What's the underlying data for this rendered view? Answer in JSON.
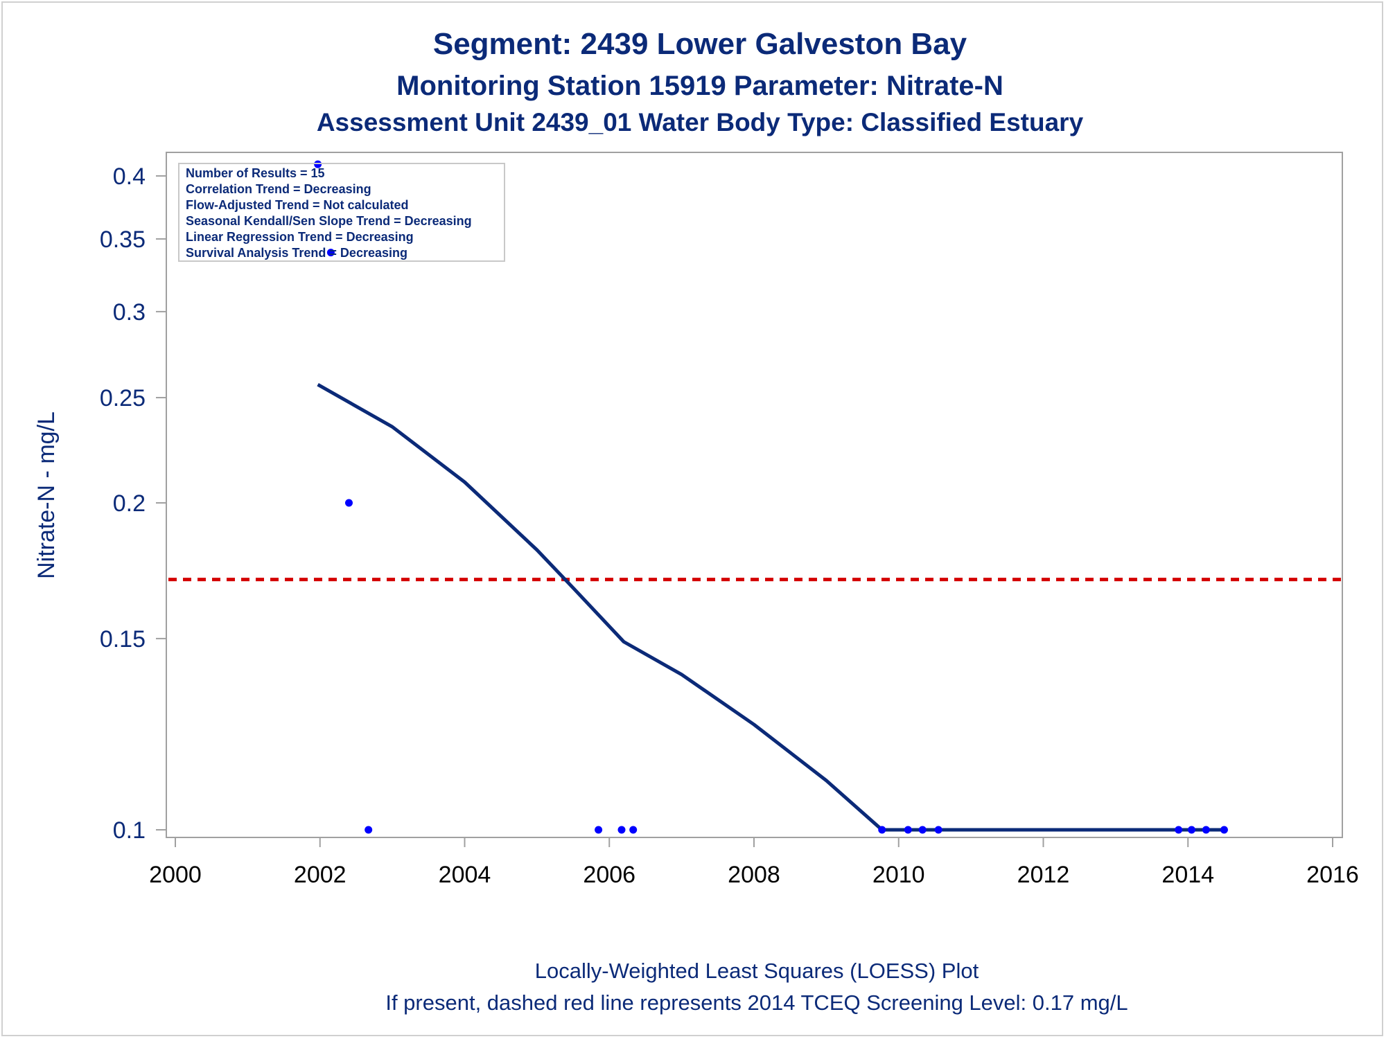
{
  "titles": {
    "line1": "Segment: 2439  Lower Galveston Bay",
    "line2": "Monitoring Station 15919 Parameter: Nitrate-N",
    "line3": "Assessment Unit 2439_01   Water Body Type: Classified Estuary"
  },
  "stats_box": [
    "Number of Results = 15",
    "Correlation Trend = Decreasing",
    "Flow-Adjusted Trend = Not calculated",
    "Seasonal Kendall/Sen Slope Trend = Decreasing",
    "Linear Regression Trend = Decreasing",
    "Survival Analysis Trend = Decreasing"
  ],
  "footnotes": {
    "line1": "Locally-Weighted Least Squares (LOESS) Plot",
    "line2": "If present, dashed red line represents 2014 TCEQ Screening Level: 0.17 mg/L"
  },
  "colors": {
    "text": "#0b2a78",
    "points": "#0000ff",
    "loess": "#0b2a78",
    "screening": "#d40000",
    "axis": "#a0a0a0"
  },
  "chart_data": {
    "type": "scatter",
    "ylabel": "Nitrate-N - mg/L",
    "xlabel": "",
    "y_scale": "log",
    "xlim": [
      2000,
      2016
    ],
    "ylim": [
      0.1,
      0.4
    ],
    "x_ticks": [
      "2000",
      "2002",
      "2004",
      "2006",
      "2008",
      "2010",
      "2012",
      "2014",
      "2016"
    ],
    "y_ticks": [
      "0.1",
      "0.15",
      "0.2",
      "0.25",
      "0.3",
      "0.35",
      "0.4"
    ],
    "screening_level": 0.17,
    "points": [
      {
        "x": 2001.97,
        "y": 0.41
      },
      {
        "x": 2002.15,
        "y": 0.34
      },
      {
        "x": 2002.4,
        "y": 0.2
      },
      {
        "x": 2002.67,
        "y": 0.1
      },
      {
        "x": 2005.85,
        "y": 0.1
      },
      {
        "x": 2006.17,
        "y": 0.1
      },
      {
        "x": 2006.33,
        "y": 0.1
      },
      {
        "x": 2009.77,
        "y": 0.1
      },
      {
        "x": 2010.13,
        "y": 0.1
      },
      {
        "x": 2010.33,
        "y": 0.1
      },
      {
        "x": 2010.55,
        "y": 0.1
      },
      {
        "x": 2013.87,
        "y": 0.1
      },
      {
        "x": 2014.05,
        "y": 0.1
      },
      {
        "x": 2014.25,
        "y": 0.1
      },
      {
        "x": 2014.5,
        "y": 0.1
      }
    ],
    "loess": [
      {
        "x": 2001.97,
        "y": 0.257
      },
      {
        "x": 2003.0,
        "y": 0.235
      },
      {
        "x": 2004.0,
        "y": 0.209
      },
      {
        "x": 2005.0,
        "y": 0.181
      },
      {
        "x": 2005.5,
        "y": 0.167
      },
      {
        "x": 2006.2,
        "y": 0.149
      },
      {
        "x": 2007.0,
        "y": 0.139
      },
      {
        "x": 2008.0,
        "y": 0.125
      },
      {
        "x": 2009.0,
        "y": 0.111
      },
      {
        "x": 2009.77,
        "y": 0.1
      },
      {
        "x": 2014.5,
        "y": 0.1
      }
    ]
  }
}
